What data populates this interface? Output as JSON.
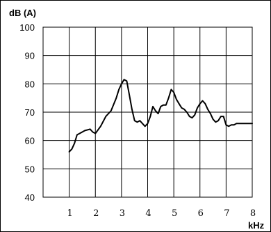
{
  "chart_data": {
    "type": "line",
    "ylabel": "dB (A)",
    "xlabel": "kHz",
    "xlim": [
      0,
      8
    ],
    "ylim": [
      40,
      100
    ],
    "grid": true,
    "xticks": [
      1,
      2,
      3,
      4,
      5,
      6,
      7,
      8
    ],
    "xtick_labels": [
      "1",
      "2",
      "3",
      "4",
      "5",
      "6",
      "7",
      "8"
    ],
    "yticks": [
      40,
      50,
      60,
      70,
      80,
      90,
      100
    ],
    "ytick_labels": [
      "40",
      "50",
      "60",
      "70",
      "80",
      "90",
      "100"
    ],
    "series": [
      {
        "x": [
          1.0,
          1.1,
          1.2,
          1.3,
          1.4,
          1.6,
          1.8,
          1.9,
          2.0,
          2.2,
          2.4,
          2.5,
          2.6,
          2.8,
          2.9,
          3.0,
          3.1,
          3.2,
          3.3,
          3.4,
          3.5,
          3.6,
          3.7,
          3.8,
          3.9,
          4.0,
          4.1,
          4.2,
          4.3,
          4.4,
          4.5,
          4.6,
          4.7,
          4.8,
          4.9,
          5.0,
          5.1,
          5.2,
          5.3,
          5.4,
          5.5,
          5.6,
          5.7,
          5.8,
          5.9,
          6.0,
          6.1,
          6.2,
          6.3,
          6.4,
          6.5,
          6.6,
          6.7,
          6.8,
          6.9,
          7.0,
          7.1,
          7.2,
          7.3,
          7.4,
          7.5,
          7.6,
          7.7,
          7.8,
          7.9,
          8.0
        ],
        "y": [
          56,
          57,
          59,
          62,
          62.5,
          63.5,
          64,
          63,
          62.5,
          65,
          68.5,
          69.5,
          70.5,
          75,
          78,
          80,
          81.5,
          81,
          76,
          71,
          67,
          66.5,
          67,
          66,
          65,
          66,
          68.5,
          72,
          70.5,
          69.5,
          72,
          72.5,
          72.5,
          75,
          78,
          77,
          74.5,
          73,
          71.5,
          71,
          70,
          68.5,
          68,
          69,
          71.5,
          73,
          74,
          73,
          71,
          69.5,
          67.5,
          66.5,
          67,
          68.5,
          68.5,
          65.5,
          65,
          65.5,
          65.5,
          66,
          66,
          66,
          66,
          66,
          66,
          66
        ]
      }
    ]
  }
}
